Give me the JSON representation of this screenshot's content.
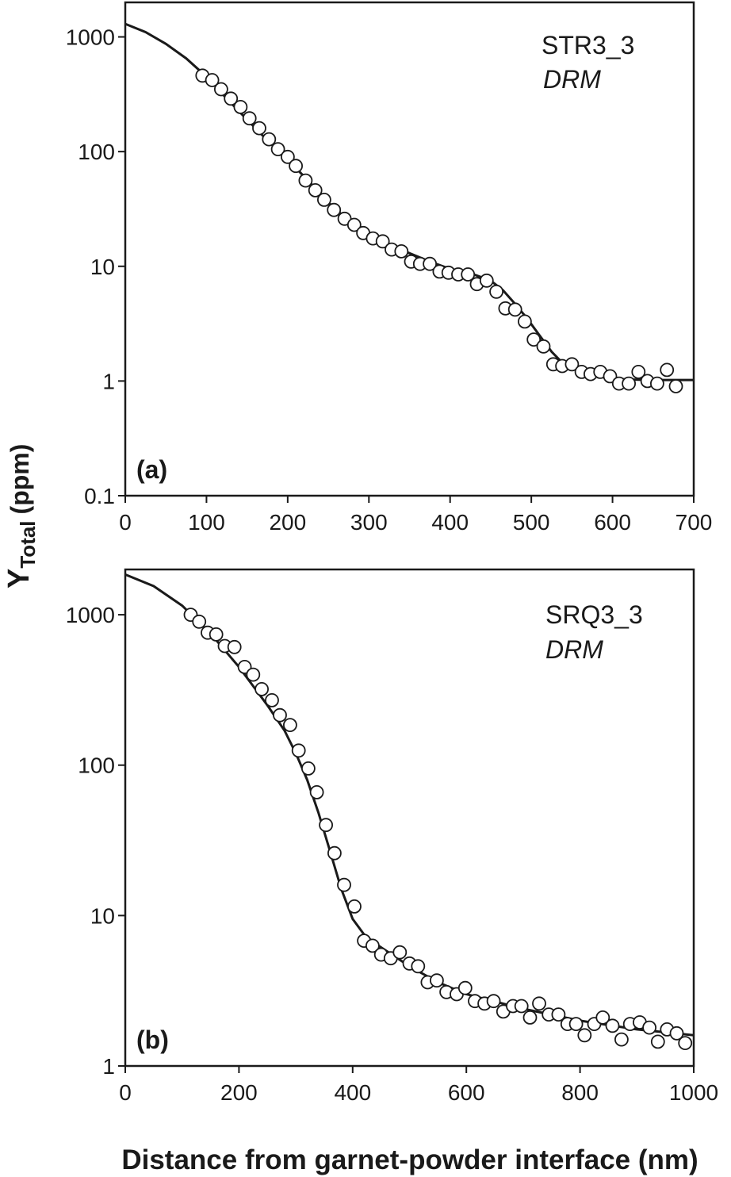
{
  "figure": {
    "ylabel_main": "Y",
    "ylabel_sub": "Total",
    "ylabel_unit": "(ppm)",
    "xlabel": "Distance from garnet-powder interface (nm)"
  },
  "chart_data": [
    {
      "type": "scatter",
      "panel": "(a)",
      "sample": "STR3_3",
      "method": "DRM",
      "xlabel": "Distance from garnet-powder interface (nm)",
      "ylabel": "Y Total (ppm)",
      "yscale": "log",
      "xlim": [
        0,
        700
      ],
      "ylim": [
        0.1,
        2000
      ],
      "xticks": [
        0,
        100,
        200,
        300,
        400,
        500,
        600,
        700
      ],
      "xtick_labels": [
        "0",
        "100",
        "200",
        "300",
        "400",
        "500",
        "600",
        "700"
      ],
      "yticks": [
        0.1,
        1,
        10,
        100,
        1000
      ],
      "ytick_labels": [
        "0.1",
        "1",
        "10",
        "100",
        "1000"
      ],
      "series": [
        {
          "name": "measured",
          "x": [
            95,
            107,
            118,
            130,
            142,
            153,
            165,
            177,
            188,
            200,
            210,
            222,
            234,
            245,
            257,
            270,
            282,
            293,
            305,
            317,
            328,
            340,
            352,
            363,
            375,
            387,
            398,
            410,
            422,
            433,
            445,
            457,
            468,
            480,
            492,
            503,
            515,
            527,
            538,
            550,
            562,
            573,
            585,
            597,
            608,
            620,
            632,
            643,
            655,
            667,
            678
          ],
          "y": [
            460,
            420,
            350,
            290,
            245,
            195,
            160,
            128,
            105,
            90,
            75,
            56,
            46,
            38,
            31,
            26,
            23,
            19.5,
            17.5,
            16.5,
            14,
            13.5,
            11,
            10.5,
            10.5,
            9,
            8.8,
            8.5,
            8.5,
            7,
            7.5,
            6,
            4.3,
            4.2,
            3.3,
            2.3,
            2,
            1.4,
            1.35,
            1.4,
            1.2,
            1.15,
            1.2,
            1.1,
            0.95,
            0.95,
            1.2,
            1,
            0.95,
            1.25,
            0.9
          ]
        },
        {
          "name": "fit",
          "x": [
            0,
            25,
            50,
            75,
            100,
            125,
            150,
            175,
            200,
            225,
            250,
            275,
            300,
            325,
            350,
            375,
            400,
            425,
            450,
            465,
            480,
            495,
            510,
            525,
            540,
            560,
            580,
            600,
            620,
            650,
            700
          ],
          "y": [
            1300,
            1100,
            870,
            650,
            450,
            290,
            190,
            125,
            85,
            56,
            36,
            25,
            19,
            15.5,
            13,
            11,
            9.5,
            8.7,
            7.5,
            6.2,
            4.7,
            3.5,
            2.5,
            1.8,
            1.4,
            1.2,
            1.1,
            1.05,
            1.03,
            1.02,
            1.02
          ]
        }
      ]
    },
    {
      "type": "scatter",
      "panel": "(b)",
      "sample": "SRQ3_3",
      "method": "DRM",
      "xlabel": "Distance from garnet-powder interface (nm)",
      "ylabel": "Y Total (ppm)",
      "yscale": "log",
      "xlim": [
        0,
        1000
      ],
      "ylim": [
        1,
        2000
      ],
      "xticks": [
        0,
        200,
        400,
        600,
        800,
        1000
      ],
      "xtick_labels": [
        "0",
        "200",
        "400",
        "600",
        "800",
        "1000"
      ],
      "yticks": [
        1,
        10,
        100,
        1000
      ],
      "ytick_labels": [
        "1",
        "10",
        "100",
        "1000"
      ],
      "series": [
        {
          "name": "measured",
          "x": [
            115,
            130,
            145,
            160,
            175,
            192,
            210,
            225,
            240,
            258,
            272,
            290,
            305,
            322,
            337,
            353,
            368,
            385,
            403,
            420,
            435,
            450,
            467,
            483,
            500,
            515,
            532,
            548,
            565,
            583,
            598,
            615,
            632,
            648,
            665,
            682,
            697,
            712,
            728,
            745,
            762,
            778,
            793,
            808,
            825,
            840,
            857,
            873,
            888,
            905,
            922,
            937,
            953,
            970,
            985
          ],
          "y": [
            1000,
            900,
            760,
            740,
            620,
            610,
            450,
            400,
            320,
            270,
            215,
            185,
            125,
            95,
            66,
            40,
            26,
            16,
            11.5,
            6.8,
            6.3,
            5.5,
            5.2,
            5.7,
            4.8,
            4.6,
            3.6,
            3.7,
            3.1,
            3,
            3.3,
            2.7,
            2.6,
            2.7,
            2.3,
            2.5,
            2.5,
            2.1,
            2.6,
            2.2,
            2.2,
            1.9,
            1.9,
            1.6,
            1.9,
            2.1,
            1.85,
            1.5,
            1.9,
            1.95,
            1.8,
            1.45,
            1.75,
            1.65,
            1.42
          ]
        },
        {
          "name": "fit",
          "x": [
            0,
            50,
            100,
            150,
            200,
            250,
            280,
            300,
            320,
            340,
            360,
            380,
            400,
            420,
            440,
            460,
            500,
            550,
            600,
            700,
            800,
            900,
            1000
          ],
          "y": [
            1850,
            1550,
            1150,
            750,
            450,
            250,
            170,
            120,
            80,
            48,
            27,
            15,
            9.5,
            7.5,
            6.5,
            5.8,
            4.6,
            3.6,
            3,
            2.4,
            2,
            1.75,
            1.6
          ]
        }
      ]
    }
  ]
}
